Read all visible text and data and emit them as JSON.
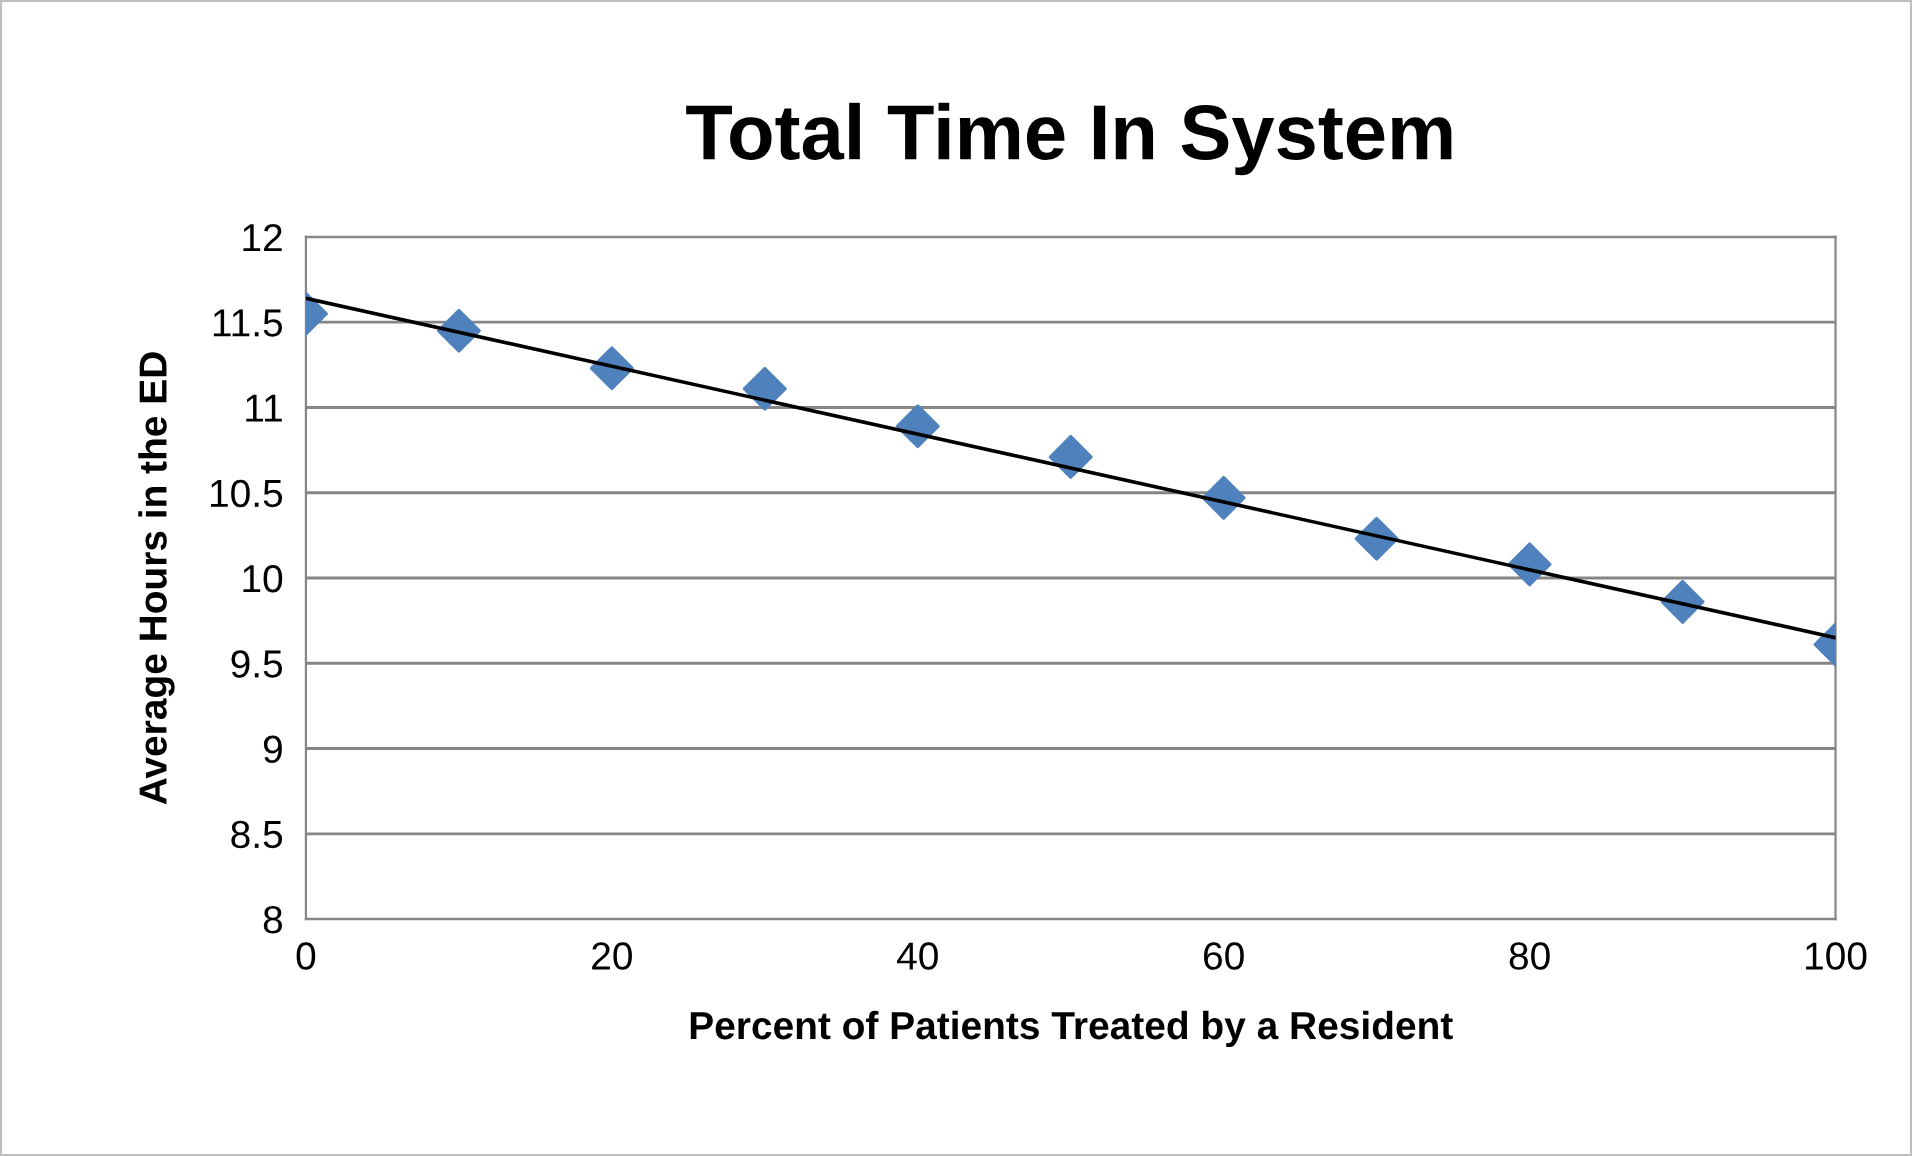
{
  "chart_data": {
    "type": "scatter",
    "title": "Total Time In System",
    "xlabel": "Percent of Patients Treated by a Resident",
    "ylabel": "Average Hours in the ED",
    "x": [
      0,
      10,
      20,
      30,
      40,
      50,
      60,
      70,
      80,
      90,
      100
    ],
    "series": [
      {
        "color": "#4f81bd",
        "marker": "diamond",
        "values": [
          11.55,
          11.45,
          11.23,
          11.11,
          10.89,
          10.71,
          10.47,
          10.23,
          10.08,
          9.86,
          9.61
        ]
      },
      {
        "type": "line",
        "color": "#000000",
        "marker": "none",
        "x": [
          0,
          100
        ],
        "values": [
          11.64,
          9.65
        ]
      }
    ],
    "xlim": [
      0,
      100
    ],
    "xticks": [
      0,
      20,
      40,
      60,
      80,
      100
    ],
    "ylim": [
      8,
      12
    ],
    "yticks": [
      8,
      8.5,
      9,
      9.5,
      10,
      10.5,
      11,
      11.5,
      12
    ],
    "grid": "y",
    "legend": false
  }
}
